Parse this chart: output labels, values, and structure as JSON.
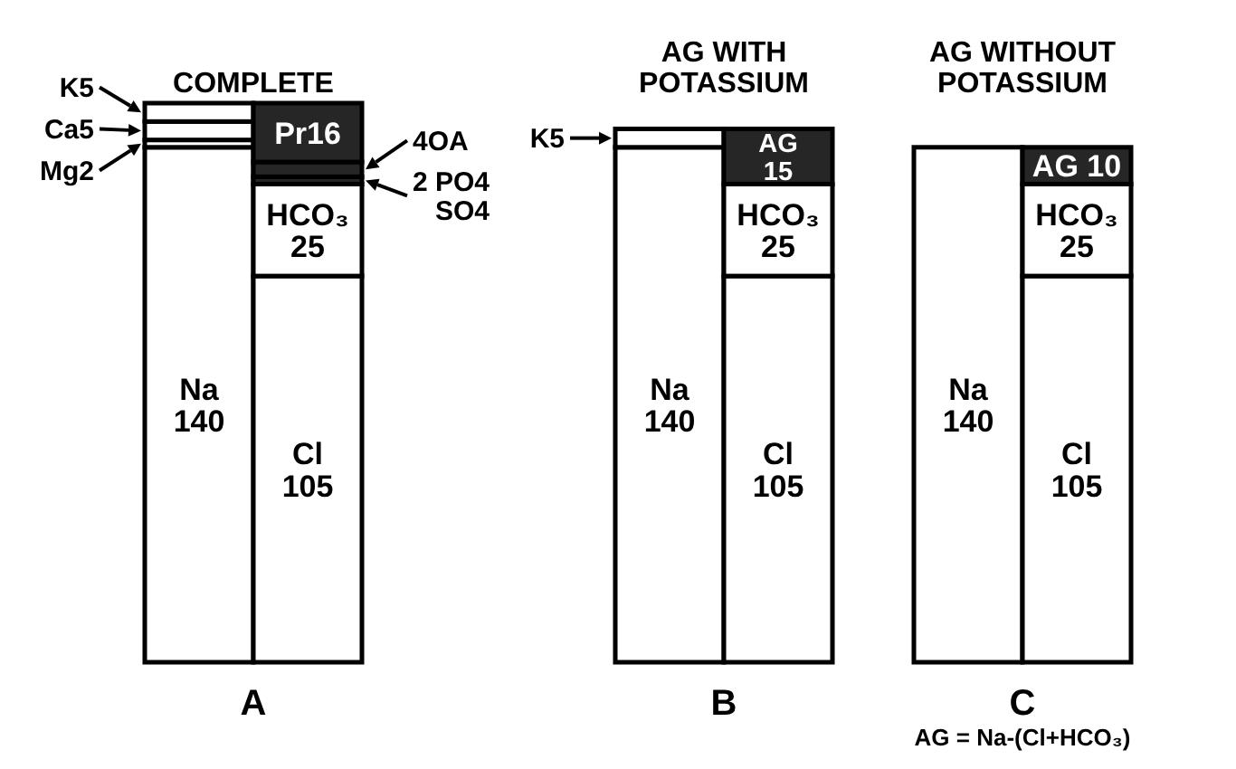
{
  "chart_data": [
    {
      "type": "bar",
      "title": "COMPLETE",
      "xlabel": "A",
      "categories": [
        null,
        null
      ],
      "stacked": true,
      "series": [
        {
          "color": "#ffffff",
          "values": [
            140,
            null
          ],
          "value_labels": [
            "Na\n140",
            null
          ]
        },
        {
          "color": "#ffffff",
          "values": [
            2,
            null
          ],
          "value_labels": [
            "Mg2",
            null
          ]
        },
        {
          "color": "#ffffff",
          "values": [
            5,
            null
          ],
          "value_labels": [
            "Ca5",
            null
          ]
        },
        {
          "color": "#ffffff",
          "values": [
            5,
            null
          ],
          "value_labels": [
            "K5",
            null
          ]
        },
        {
          "color": "#ffffff",
          "values": [
            null,
            105
          ],
          "value_labels": [
            null,
            "Cl\n105"
          ]
        },
        {
          "color": "#ffffff",
          "values": [
            null,
            25
          ],
          "value_labels": [
            null,
            "HCO₃\n25"
          ]
        },
        {
          "color": "#262626",
          "values": [
            null,
            2
          ],
          "value_labels": [
            null,
            "2 PO4\n   SO4"
          ]
        },
        {
          "color": "#262626",
          "values": [
            null,
            4
          ],
          "value_labels": [
            null,
            "4OA"
          ]
        },
        {
          "color": "#262626",
          "values": [
            null,
            16
          ],
          "value_labels": [
            null,
            "Pr16"
          ]
        }
      ]
    },
    {
      "type": "bar",
      "title": "AG WITH\nPOTASSIUM",
      "xlabel": "B",
      "categories": [
        null,
        null
      ],
      "stacked": true,
      "series": [
        {
          "color": "#ffffff",
          "values": [
            140,
            null
          ],
          "value_labels": [
            "Na\n140",
            null
          ]
        },
        {
          "color": "#ffffff",
          "values": [
            5,
            null
          ],
          "value_labels": [
            "K5",
            null
          ]
        },
        {
          "color": "#ffffff",
          "values": [
            null,
            105
          ],
          "value_labels": [
            null,
            "Cl\n105"
          ]
        },
        {
          "color": "#ffffff",
          "values": [
            null,
            25
          ],
          "value_labels": [
            null,
            "HCO₃\n25"
          ]
        },
        {
          "color": "#262626",
          "values": [
            null,
            15
          ],
          "value_labels": [
            null,
            "AG\n15"
          ]
        }
      ]
    },
    {
      "type": "bar",
      "title": "AG WITHOUT\nPOTASSIUM",
      "xlabel": "C",
      "categories": [
        null,
        null
      ],
      "stacked": true,
      "annotations": [
        "AG = Na-(Cl+HCO₃)"
      ],
      "series": [
        {
          "color": "#ffffff",
          "values": [
            140,
            null
          ],
          "value_labels": [
            "Na\n140",
            null
          ]
        },
        {
          "color": "#ffffff",
          "values": [
            null,
            105
          ],
          "value_labels": [
            null,
            "Cl\n105"
          ]
        },
        {
          "color": "#ffffff",
          "values": [
            null,
            25
          ],
          "value_labels": [
            null,
            "HCO₃\n25"
          ]
        },
        {
          "color": "#262626",
          "values": [
            null,
            10
          ],
          "value_labels": [
            null,
            "AG 10"
          ]
        }
      ]
    }
  ]
}
